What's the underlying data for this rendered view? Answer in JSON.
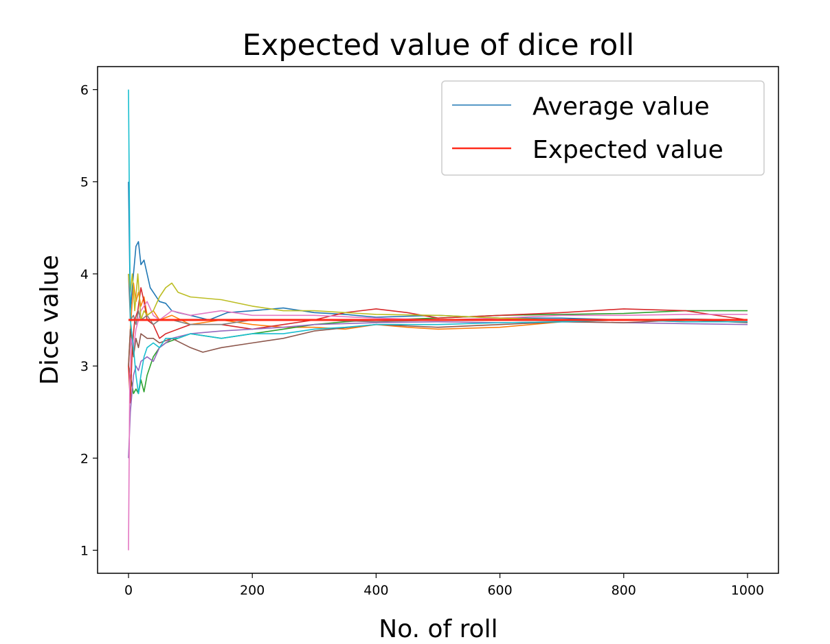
{
  "chart_data": {
    "type": "line",
    "title": "Expected value of dice roll",
    "xlabel": "No. of roll",
    "ylabel": "Dice value",
    "xlim": [
      -50,
      1050
    ],
    "ylim": [
      0.75,
      6.25
    ],
    "xticks": [
      0,
      200,
      400,
      600,
      800,
      1000
    ],
    "yticks": [
      1,
      2,
      3,
      4,
      5,
      6
    ],
    "grid": false,
    "legend": {
      "position": "top-right",
      "entries": [
        "Average value",
        "Expected value"
      ]
    },
    "series": [
      {
        "name": "Average value",
        "color": "#1f77b4",
        "x": [
          0,
          3,
          8,
          12,
          16,
          20,
          25,
          30,
          35,
          40,
          50,
          60,
          70,
          80,
          100,
          130,
          160,
          200,
          250,
          300,
          350,
          400,
          500,
          600,
          700,
          800,
          900,
          1000
        ],
        "y": [
          5,
          3.6,
          4.0,
          4.3,
          4.35,
          4.1,
          4.15,
          4.0,
          3.85,
          3.8,
          3.7,
          3.68,
          3.6,
          3.58,
          3.55,
          3.5,
          3.58,
          3.6,
          3.63,
          3.58,
          3.56,
          3.53,
          3.55,
          3.52,
          3.52,
          3.5,
          3.51,
          3.5
        ]
      },
      {
        "color": "#ff7f0e",
        "x": [
          0,
          3,
          8,
          12,
          16,
          20,
          25,
          30,
          40,
          50,
          70,
          100,
          150,
          200,
          250,
          300,
          350,
          400,
          450,
          500,
          600,
          700,
          800,
          900,
          1000
        ],
        "y": [
          3,
          3.4,
          3.9,
          3.7,
          3.8,
          3.65,
          3.75,
          3.55,
          3.6,
          3.5,
          3.55,
          3.45,
          3.5,
          3.45,
          3.42,
          3.42,
          3.4,
          3.45,
          3.42,
          3.4,
          3.42,
          3.48,
          3.5,
          3.48,
          3.48
        ]
      },
      {
        "color": "#2ca02c",
        "x": [
          0,
          3,
          8,
          12,
          16,
          20,
          25,
          30,
          40,
          50,
          60,
          80,
          100,
          150,
          200,
          250,
          300,
          350,
          400,
          500,
          600,
          700,
          800,
          900,
          1000
        ],
        "y": [
          3,
          2.9,
          2.7,
          2.75,
          2.7,
          2.85,
          2.72,
          2.9,
          3.1,
          3.2,
          3.25,
          3.3,
          3.35,
          3.3,
          3.35,
          3.4,
          3.45,
          3.48,
          3.5,
          3.52,
          3.55,
          3.56,
          3.57,
          3.6,
          3.6
        ]
      },
      {
        "color": "#d62728",
        "x": [
          0,
          3,
          6,
          10,
          15,
          20,
          25,
          30,
          40,
          50,
          60,
          80,
          100,
          150,
          200,
          250,
          300,
          350,
          400,
          450,
          500,
          600,
          700,
          800,
          900,
          1000
        ],
        "y": [
          3,
          2.6,
          3.2,
          3.5,
          3.6,
          3.85,
          3.7,
          3.5,
          3.45,
          3.3,
          3.35,
          3.4,
          3.45,
          3.45,
          3.4,
          3.45,
          3.5,
          3.58,
          3.62,
          3.58,
          3.52,
          3.55,
          3.58,
          3.62,
          3.6,
          3.5
        ]
      },
      {
        "color": "#9467bd",
        "x": [
          0,
          3,
          8,
          12,
          16,
          20,
          30,
          40,
          50,
          70,
          100,
          150,
          200,
          250,
          300,
          400,
          500,
          600,
          700,
          800,
          900,
          1000
        ],
        "y": [
          2,
          2.5,
          2.9,
          3.0,
          2.95,
          3.05,
          3.1,
          3.05,
          3.2,
          3.3,
          3.35,
          3.38,
          3.4,
          3.42,
          3.45,
          3.47,
          3.48,
          3.47,
          3.48,
          3.47,
          3.46,
          3.45
        ]
      },
      {
        "color": "#8c564b",
        "x": [
          0,
          3,
          8,
          12,
          16,
          20,
          30,
          40,
          50,
          70,
          100,
          120,
          150,
          200,
          250,
          300,
          400,
          500,
          600,
          700,
          800,
          900,
          1000
        ],
        "y": [
          3,
          3.4,
          3.1,
          3.3,
          3.2,
          3.35,
          3.3,
          3.3,
          3.25,
          3.3,
          3.2,
          3.15,
          3.2,
          3.25,
          3.3,
          3.38,
          3.45,
          3.42,
          3.45,
          3.48,
          3.47,
          3.5,
          3.47
        ]
      },
      {
        "color": "#e377c2",
        "x": [
          0,
          2,
          4,
          8,
          12,
          16,
          20,
          30,
          40,
          50,
          70,
          100,
          150,
          200,
          250,
          300,
          400,
          500,
          600,
          700,
          800,
          900,
          1000
        ],
        "y": [
          1,
          2.8,
          3.3,
          3.2,
          3.4,
          3.5,
          3.6,
          3.7,
          3.55,
          3.5,
          3.6,
          3.55,
          3.6,
          3.55,
          3.55,
          3.55,
          3.52,
          3.5,
          3.52,
          3.55,
          3.55,
          3.56,
          3.56
        ]
      },
      {
        "color": "#7f7f7f",
        "x": [
          0,
          3,
          8,
          12,
          16,
          20,
          30,
          40,
          50,
          70,
          100,
          150,
          200,
          300,
          400,
          500,
          600,
          700,
          800,
          900,
          1000
        ],
        "y": [
          4,
          3.5,
          3.55,
          3.45,
          3.6,
          3.5,
          3.55,
          3.45,
          3.5,
          3.5,
          3.45,
          3.45,
          3.5,
          3.5,
          3.48,
          3.5,
          3.5,
          3.49,
          3.5,
          3.5,
          3.5
        ]
      },
      {
        "color": "#bcbd22",
        "x": [
          0,
          3,
          6,
          10,
          15,
          20,
          25,
          30,
          40,
          50,
          60,
          70,
          80,
          100,
          150,
          200,
          250,
          300,
          350,
          400,
          500,
          600,
          700,
          800,
          900,
          1000
        ],
        "y": [
          4,
          3.8,
          4.0,
          3.6,
          4.0,
          3.5,
          3.6,
          3.55,
          3.6,
          3.75,
          3.85,
          3.9,
          3.8,
          3.75,
          3.72,
          3.65,
          3.6,
          3.6,
          3.58,
          3.56,
          3.55,
          3.52,
          3.5,
          3.5,
          3.5,
          3.5
        ]
      },
      {
        "color": "#17becf",
        "x": [
          0,
          3,
          8,
          12,
          16,
          20,
          25,
          30,
          40,
          50,
          60,
          80,
          100,
          150,
          200,
          250,
          300,
          350,
          400,
          500,
          600,
          700,
          800,
          900,
          1000
        ],
        "y": [
          6,
          3.5,
          3.2,
          2.9,
          2.7,
          2.9,
          3.1,
          3.2,
          3.25,
          3.2,
          3.3,
          3.3,
          3.35,
          3.3,
          3.35,
          3.35,
          3.4,
          3.42,
          3.45,
          3.45,
          3.47,
          3.48,
          3.5,
          3.48,
          3.48
        ]
      },
      {
        "name": "Expected value",
        "color": "#ff2a1a",
        "x": [
          0,
          1000
        ],
        "y": [
          3.5,
          3.5
        ]
      }
    ]
  }
}
